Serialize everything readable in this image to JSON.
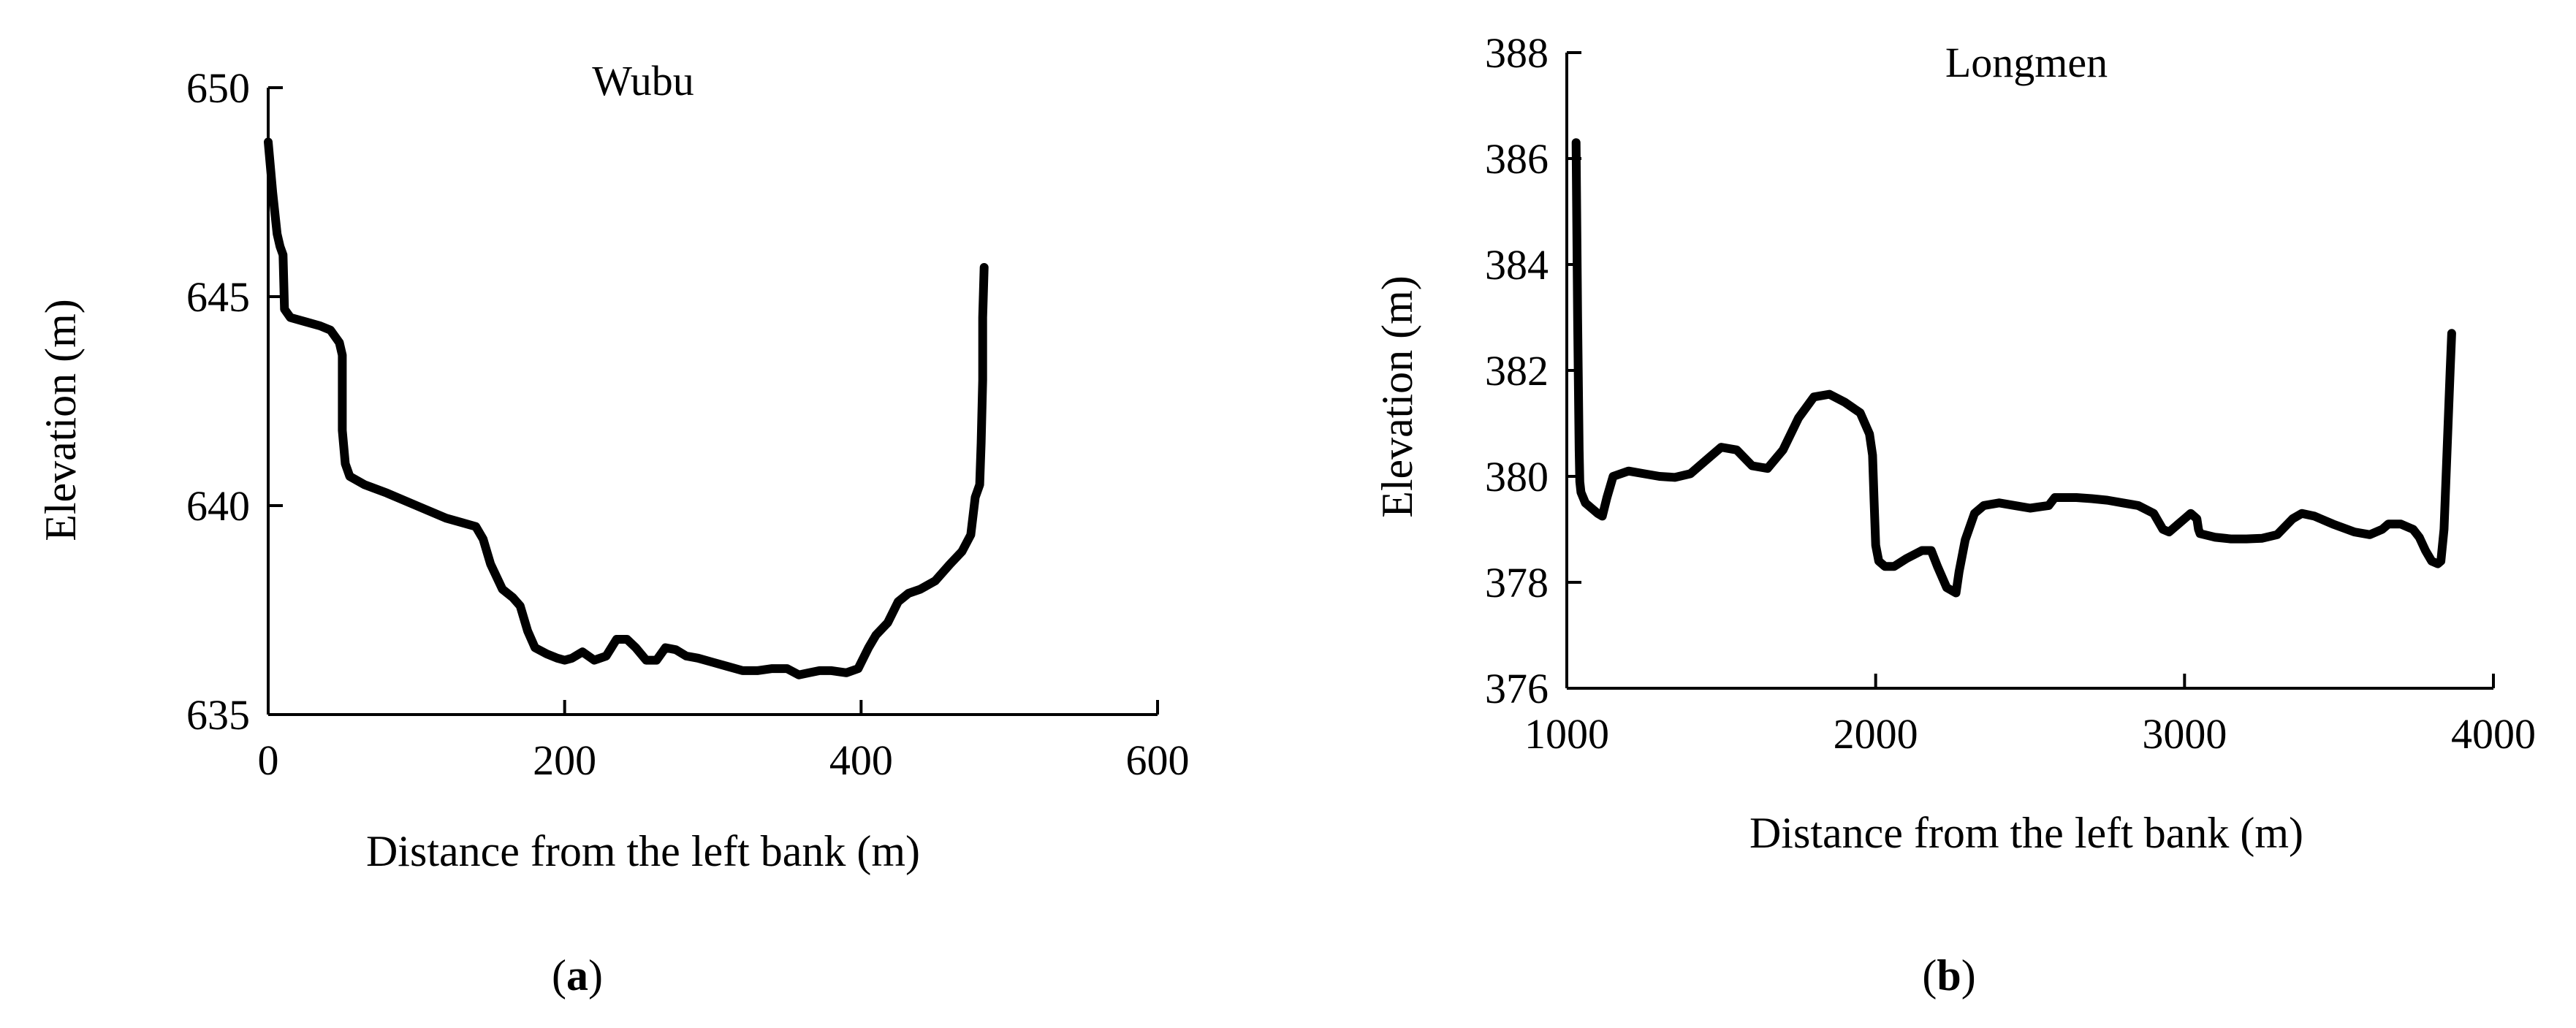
{
  "chart_data": [
    {
      "type": "line",
      "panel_label": "a",
      "title": "Wubu",
      "xlabel": "Distance from the left bank (m)",
      "ylabel": "Elevation (m)",
      "xlim": [
        0,
        600
      ],
      "ylim": [
        635,
        650
      ],
      "xticks": [
        0,
        200,
        400,
        600
      ],
      "yticks": [
        635,
        640,
        645,
        650
      ],
      "grid": false,
      "line_color": "#000000",
      "series": [
        {
          "x": [
            0,
            3,
            6,
            8,
            10,
            11,
            15,
            25,
            35,
            42,
            48,
            50,
            50,
            52,
            55,
            65,
            80,
            100,
            120,
            140,
            145,
            150,
            158,
            165,
            170,
            175,
            180,
            188,
            195,
            200,
            205,
            212,
            220,
            228,
            235,
            242,
            248,
            255,
            262,
            268,
            275,
            282,
            290,
            300,
            310,
            320,
            330,
            340,
            350,
            358,
            365,
            372,
            380,
            390,
            398,
            405,
            410,
            418,
            425,
            432,
            440,
            450,
            460,
            468,
            474,
            477,
            480,
            481,
            482,
            482,
            483
          ],
          "y": [
            648.7,
            647.5,
            646.5,
            646.2,
            646.0,
            644.7,
            644.5,
            644.4,
            644.3,
            644.2,
            643.9,
            643.6,
            641.8,
            641.0,
            640.7,
            640.5,
            640.3,
            640.0,
            639.7,
            639.5,
            639.2,
            638.6,
            638.0,
            637.8,
            637.6,
            637.0,
            636.6,
            636.45,
            636.35,
            636.3,
            636.35,
            636.5,
            636.3,
            636.4,
            636.8,
            636.8,
            636.6,
            636.3,
            636.3,
            636.6,
            636.55,
            636.4,
            636.35,
            636.25,
            636.15,
            636.05,
            636.05,
            636.1,
            636.1,
            635.95,
            636.0,
            636.05,
            636.05,
            636.0,
            636.1,
            636.6,
            636.9,
            637.2,
            637.7,
            637.9,
            638.0,
            638.2,
            638.6,
            638.9,
            639.3,
            640.2,
            640.5,
            641.5,
            643.0,
            644.5,
            645.7
          ]
        }
      ]
    },
    {
      "type": "line",
      "panel_label": "b",
      "title": "Longmen",
      "xlabel": "Distance from the left bank (m)",
      "ylabel": "Elevation (m)",
      "xlim": [
        1000,
        4000
      ],
      "ylim": [
        376,
        388
      ],
      "xticks": [
        1000,
        2000,
        3000,
        4000
      ],
      "yticks": [
        376,
        378,
        380,
        382,
        384,
        386,
        388
      ],
      "grid": false,
      "line_color": "#000000",
      "series": [
        {
          "x": [
            1030,
            1035,
            1040,
            1042,
            1046,
            1060,
            1080,
            1100,
            1115,
            1130,
            1150,
            1200,
            1250,
            1300,
            1350,
            1400,
            1450,
            1500,
            1550,
            1600,
            1650,
            1700,
            1750,
            1800,
            1850,
            1900,
            1950,
            1980,
            1990,
            1995,
            2000,
            2010,
            2030,
            2060,
            2100,
            2150,
            2180,
            2200,
            2230,
            2260,
            2270,
            2290,
            2320,
            2350,
            2400,
            2450,
            2500,
            2560,
            2580,
            2600,
            2650,
            2700,
            2750,
            2800,
            2850,
            2900,
            2930,
            2950,
            2960,
            2980,
            3000,
            3020,
            3040,
            3045,
            3050,
            3100,
            3150,
            3200,
            3250,
            3300,
            3350,
            3380,
            3420,
            3480,
            3550,
            3600,
            3640,
            3660,
            3700,
            3740,
            3760,
            3780,
            3800,
            3820,
            3830,
            3840,
            3850,
            3860,
            3865
          ],
          "y": [
            386.3,
            383.0,
            380.5,
            379.9,
            379.7,
            379.5,
            379.4,
            379.3,
            379.25,
            379.6,
            380.0,
            380.1,
            380.05,
            380.0,
            379.98,
            380.05,
            380.3,
            380.55,
            380.5,
            380.2,
            380.15,
            380.5,
            381.1,
            381.5,
            381.55,
            381.4,
            381.2,
            380.8,
            380.4,
            379.5,
            378.7,
            378.4,
            378.3,
            378.3,
            378.45,
            378.6,
            378.6,
            378.3,
            377.9,
            377.8,
            378.2,
            378.8,
            379.3,
            379.45,
            379.5,
            379.45,
            379.4,
            379.45,
            379.6,
            379.6,
            379.6,
            379.58,
            379.55,
            379.5,
            379.45,
            379.3,
            379.0,
            378.95,
            379.0,
            379.1,
            379.2,
            379.3,
            379.2,
            379.0,
            378.92,
            378.85,
            378.82,
            378.82,
            378.83,
            378.9,
            379.2,
            379.3,
            379.25,
            379.1,
            378.95,
            378.9,
            379.0,
            379.1,
            379.1,
            379.0,
            378.85,
            378.6,
            378.4,
            378.35,
            378.4,
            379.0,
            380.5,
            382.0,
            382.7
          ]
        }
      ]
    }
  ]
}
